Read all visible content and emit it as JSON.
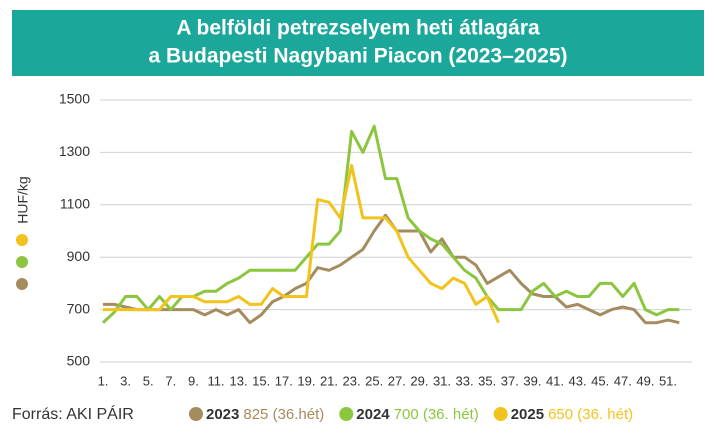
{
  "chart_data": {
    "type": "line",
    "title": [
      "A belföldi petrezselyem heti átlagára",
      "a Budapesti Nagybani Piacon (2023–2025)"
    ],
    "y_label": "HUF/kg",
    "source": "Forrás: AKI PÁIR",
    "categories": [
      "1.",
      null,
      "3.",
      null,
      "5.",
      null,
      "7.",
      null,
      "9.",
      null,
      "11.",
      null,
      "13.",
      null,
      "15.",
      null,
      "17.",
      null,
      "19.",
      null,
      "21.",
      null,
      "23.",
      null,
      "25.",
      null,
      "27.",
      null,
      "29.",
      null,
      "31.",
      null,
      "33.",
      null,
      "35.",
      null,
      "37.",
      null,
      "39.",
      null,
      "41.",
      null,
      "43.",
      null,
      "45.",
      null,
      "47.",
      null,
      "49.",
      null,
      "51.",
      null
    ],
    "ylim": [
      500,
      1500
    ],
    "yticks": [
      500,
      700,
      900,
      1100,
      1300,
      1500
    ],
    "grid": true,
    "series": [
      {
        "name": "2023",
        "note": "825 (36.hét)",
        "color": "#a58c5f",
        "values": [
          720,
          720,
          710,
          700,
          700,
          700,
          700,
          700,
          700,
          680,
          700,
          680,
          700,
          650,
          680,
          730,
          750,
          780,
          800,
          860,
          850,
          870,
          900,
          930,
          1000,
          1060,
          1000,
          1000,
          1000,
          920,
          970,
          900,
          900,
          870,
          800,
          825,
          850,
          800,
          760,
          750,
          750,
          710,
          720,
          700,
          680,
          700,
          710,
          700,
          650,
          650,
          660,
          650
        ]
      },
      {
        "name": "2024",
        "note": "700 (36. hét)",
        "color": "#8cc63f",
        "values": [
          650,
          690,
          750,
          750,
          700,
          750,
          700,
          750,
          750,
          770,
          770,
          800,
          820,
          850,
          850,
          850,
          850,
          850,
          900,
          950,
          950,
          1000,
          1380,
          1300,
          1400,
          1200,
          1200,
          1050,
          1000,
          970,
          950,
          900,
          850,
          820,
          750,
          700,
          700,
          700,
          770,
          800,
          750,
          770,
          750,
          750,
          800,
          800,
          750,
          800,
          700,
          680,
          700,
          700
        ]
      },
      {
        "name": "2025",
        "note": "650 (36. hét)",
        "color": "#f2c31c",
        "values": [
          700,
          700,
          700,
          700,
          700,
          700,
          750,
          750,
          750,
          730,
          730,
          730,
          750,
          720,
          720,
          780,
          750,
          750,
          750,
          1120,
          1110,
          1050,
          1250,
          1050,
          1050,
          1050,
          1000,
          900,
          850,
          800,
          780,
          820,
          800,
          720,
          750,
          650,
          null,
          null,
          null,
          null,
          null,
          null,
          null,
          null,
          null,
          null,
          null,
          null,
          null,
          null,
          null,
          null
        ]
      }
    ]
  }
}
